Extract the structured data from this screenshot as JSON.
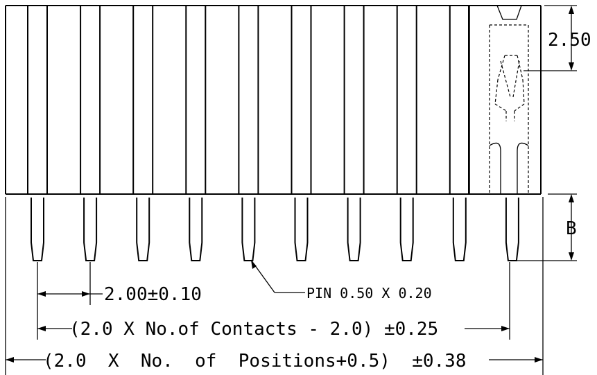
{
  "drawing": {
    "labels": {
      "dim_clip_height": "2.50",
      "dim_pin_length": "B",
      "pin_callout": "PIN 0.50 X 0.20",
      "dim_pitch": "2.00±0.10",
      "dim_contacts": "(2.0 X No.of Contacts - 2.0) ±0.25",
      "dim_positions": "(2.0  X  No.  of  Positions+0.5)  ±0.38"
    },
    "pin_count": 10
  }
}
